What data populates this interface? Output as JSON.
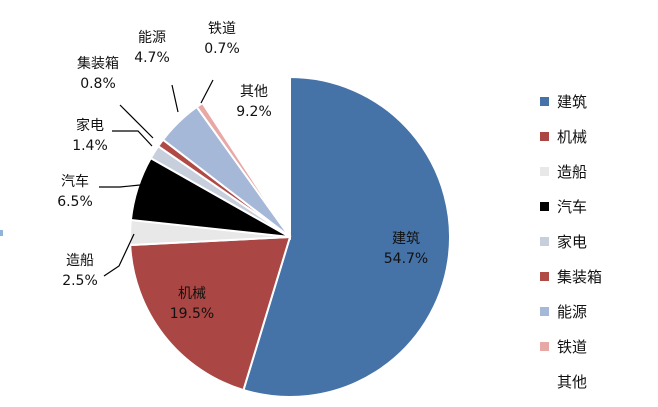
{
  "chart_data": {
    "type": "pie",
    "title": "",
    "categories": [
      "建筑",
      "机械",
      "造船",
      "汽车",
      "家电",
      "集装箱",
      "能源",
      "铁道",
      "其他"
    ],
    "values": [
      54.7,
      19.5,
      2.5,
      6.5,
      1.4,
      0.8,
      4.7,
      0.7,
      9.2
    ],
    "value_labels": [
      "54.7%",
      "19.5%",
      "2.5%",
      "6.5%",
      "1.4%",
      "0.8%",
      "4.7%",
      "0.7%",
      "9.2%"
    ],
    "colors": [
      "#4572a7",
      "#aa4643",
      "#e8e8e8",
      "#000000",
      "#c7cfdc",
      "#b04a45",
      "#a5b8d8",
      "#e8a9a6",
      "#ffffff"
    ],
    "legend_position": "right",
    "start_at": "12 o'clock, clockwise"
  }
}
